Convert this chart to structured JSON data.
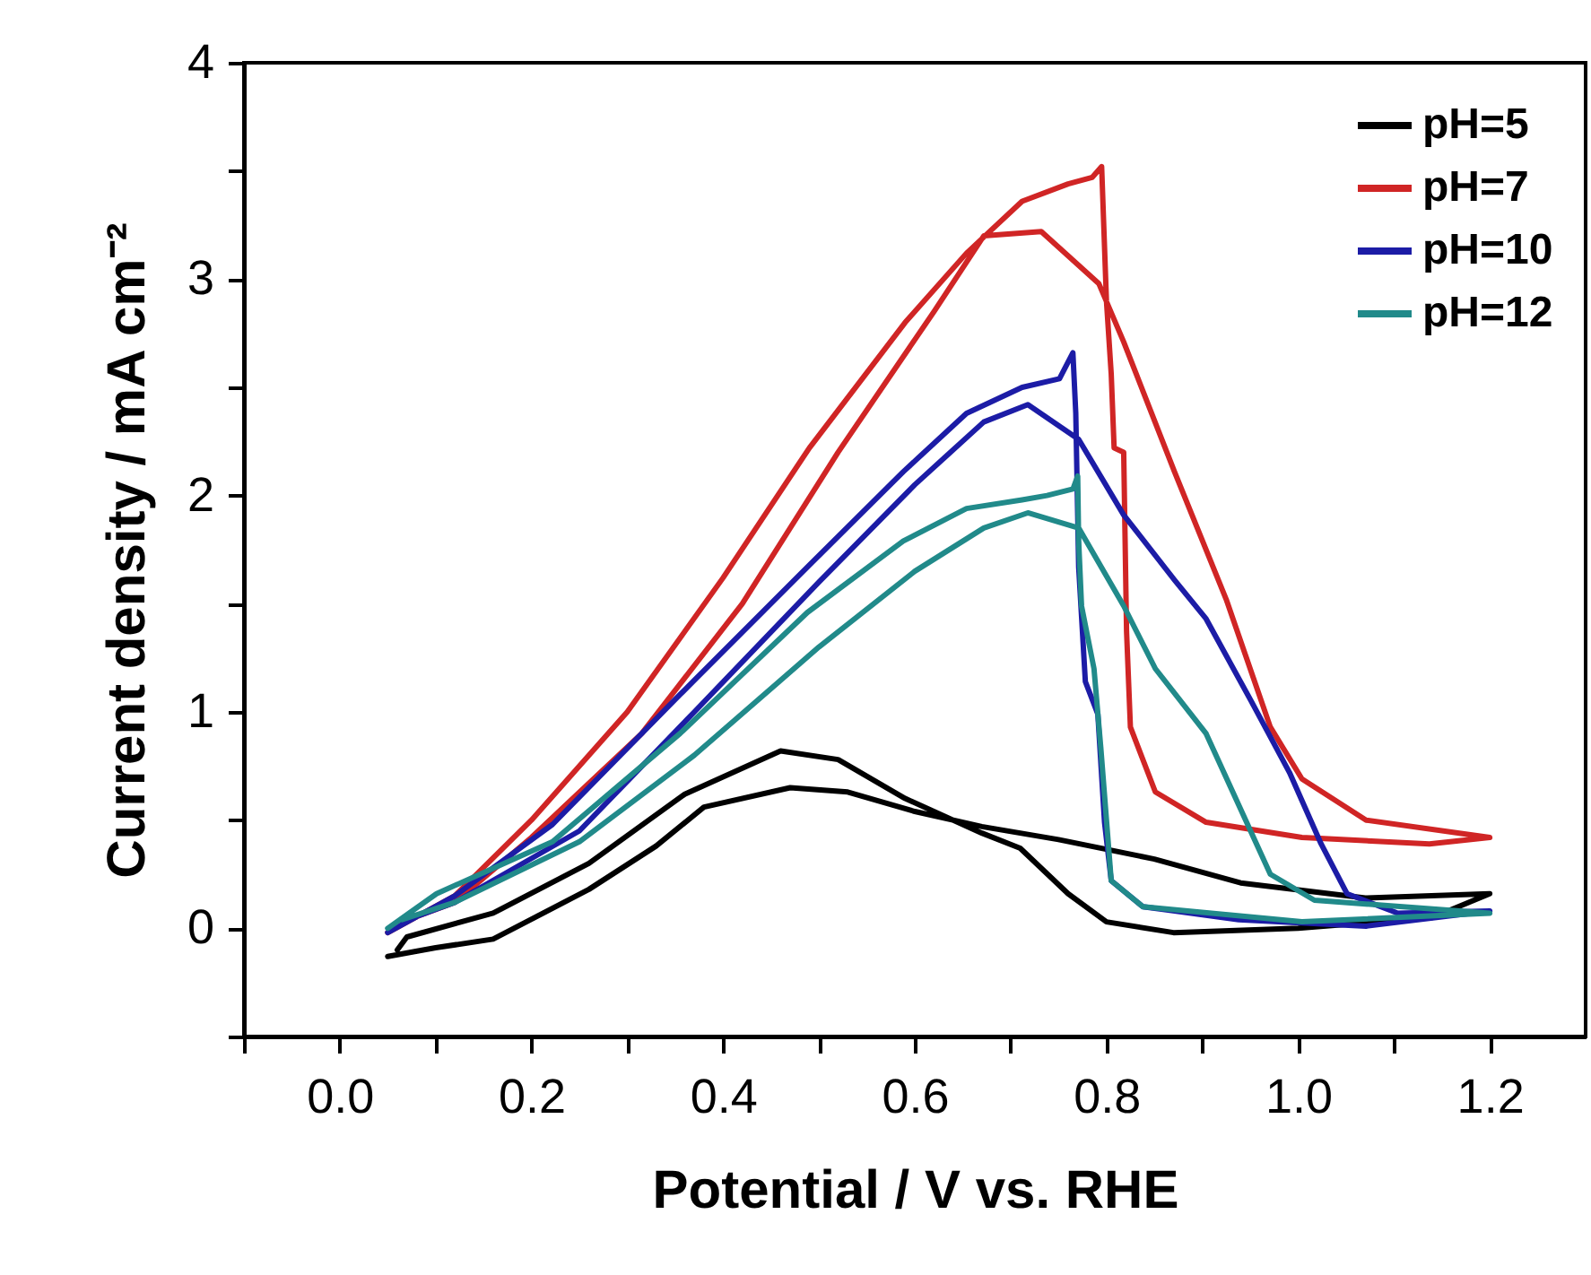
{
  "chart_data": {
    "type": "line",
    "xlabel": "Potential / V vs. RHE",
    "ylabel": "Current density / mA cm⁻²",
    "xlim": [
      -0.1,
      1.3
    ],
    "ylim": [
      -0.5,
      4
    ],
    "xticks": [
      {
        "value": -0.1,
        "label": null
      },
      {
        "value": 0,
        "label": "0.0"
      },
      {
        "value": 0.1,
        "label": null
      },
      0.2,
      {
        "value": 0.3,
        "label": null
      },
      0.4,
      {
        "value": 0.5,
        "label": null
      },
      0.6,
      {
        "value": 0.7,
        "label": null
      },
      0.8,
      {
        "value": 0.9,
        "label": null
      },
      {
        "value": 1,
        "label": "1.0"
      },
      {
        "value": 1.1,
        "label": null
      },
      1.2
    ],
    "yticks": [
      {
        "value": -0.5,
        "label": null
      },
      0,
      {
        "value": 0.5,
        "label": null
      },
      1,
      {
        "value": 1.5,
        "label": null
      },
      2,
      {
        "value": 2.5,
        "label": null
      },
      3,
      {
        "value": 3.5,
        "label": null
      },
      4
    ],
    "grid": false,
    "legend": "top right",
    "line_style": "solid",
    "marker": "none",
    "series": [
      {
        "name": "pH=5",
        "color": "#000000",
        "x": [
          0.05,
          0.1,
          0.16,
          0.26,
          0.33,
          0.38,
          0.47,
          0.53,
          0.6,
          0.67,
          0.75,
          0.85,
          0.94,
          1.07,
          1.2,
          1.14,
          1.0,
          0.87,
          0.8,
          0.76,
          0.71,
          0.67,
          0.59,
          0.52,
          0.46,
          0.36,
          0.26,
          0.16,
          0.07,
          0.06
        ],
        "values": [
          -0.13,
          -0.09,
          -0.05,
          0.18,
          0.38,
          0.56,
          0.65,
          0.63,
          0.54,
          0.47,
          0.41,
          0.32,
          0.21,
          0.14,
          0.16,
          0.05,
          0.0,
          -0.02,
          0.03,
          0.16,
          0.37,
          0.44,
          0.6,
          0.78,
          0.82,
          0.62,
          0.3,
          0.07,
          -0.04,
          -0.1
        ]
      },
      {
        "name": "pH=7",
        "color": "#d02525",
        "x": [
          0.05,
          0.12,
          0.2,
          0.3,
          0.4,
          0.49,
          0.59,
          0.654,
          0.712,
          0.76,
          0.785,
          0.795,
          0.8,
          0.805,
          0.808,
          0.818,
          0.821,
          0.825,
          0.851,
          0.904,
          1.004,
          1.137,
          1.2,
          1.071,
          1.004,
          0.971,
          0.925,
          0.871,
          0.818,
          0.792,
          0.732,
          0.672,
          0.62,
          0.52,
          0.42,
          0.315,
          0.2,
          0.12,
          0.065
        ],
        "values": [
          -0.02,
          0.15,
          0.5,
          1.0,
          1.62,
          2.22,
          2.8,
          3.12,
          3.36,
          3.44,
          3.47,
          3.52,
          2.9,
          2.56,
          2.22,
          2.2,
          1.37,
          0.93,
          0.63,
          0.49,
          0.42,
          0.39,
          0.42,
          0.5,
          0.69,
          0.93,
          1.52,
          2.11,
          2.71,
          2.98,
          3.22,
          3.2,
          2.85,
          2.2,
          1.5,
          0.9,
          0.42,
          0.12,
          0.03
        ]
      },
      {
        "name": "pH=10",
        "color": "#1c1ca6",
        "x": [
          0.05,
          0.12,
          0.222,
          0.355,
          0.488,
          0.588,
          0.654,
          0.712,
          0.751,
          0.765,
          0.768,
          0.771,
          0.778,
          0.791,
          0.798,
          0.805,
          0.838,
          0.938,
          1.071,
          1.2,
          1.104,
          1.051,
          1.024,
          0.991,
          0.951,
          0.904,
          0.871,
          0.818,
          0.771,
          0.718,
          0.672,
          0.6,
          0.5,
          0.37,
          0.25,
          0.12,
          0.065
        ],
        "values": [
          -0.02,
          0.15,
          0.48,
          1.08,
          1.67,
          2.11,
          2.38,
          2.5,
          2.54,
          2.66,
          2.38,
          1.67,
          1.14,
          0.99,
          0.49,
          0.22,
          0.1,
          0.04,
          0.01,
          0.08,
          0.07,
          0.16,
          0.39,
          0.72,
          1.05,
          1.43,
          1.61,
          1.91,
          2.26,
          2.42,
          2.34,
          2.05,
          1.6,
          1.0,
          0.45,
          0.12,
          0.03
        ]
      },
      {
        "name": "pH=12",
        "color": "#218a8a",
        "x": [
          0.05,
          0.101,
          0.222,
          0.355,
          0.488,
          0.588,
          0.654,
          0.712,
          0.738,
          0.765,
          0.77,
          0.771,
          0.774,
          0.787,
          0.794,
          0.805,
          0.838,
          1.004,
          1.2,
          1.017,
          0.971,
          0.938,
          0.904,
          0.851,
          0.818,
          0.771,
          0.718,
          0.672,
          0.6,
          0.5,
          0.37,
          0.25,
          0.12,
          0.065
        ],
        "values": [
          0.0,
          0.16,
          0.4,
          0.9,
          1.46,
          1.79,
          1.94,
          1.98,
          2.0,
          2.03,
          2.09,
          1.79,
          1.49,
          1.2,
          0.84,
          0.22,
          0.1,
          0.03,
          0.07,
          0.13,
          0.25,
          0.57,
          0.9,
          1.2,
          1.49,
          1.85,
          1.92,
          1.85,
          1.65,
          1.3,
          0.8,
          0.4,
          0.12,
          0.04
        ]
      }
    ]
  }
}
